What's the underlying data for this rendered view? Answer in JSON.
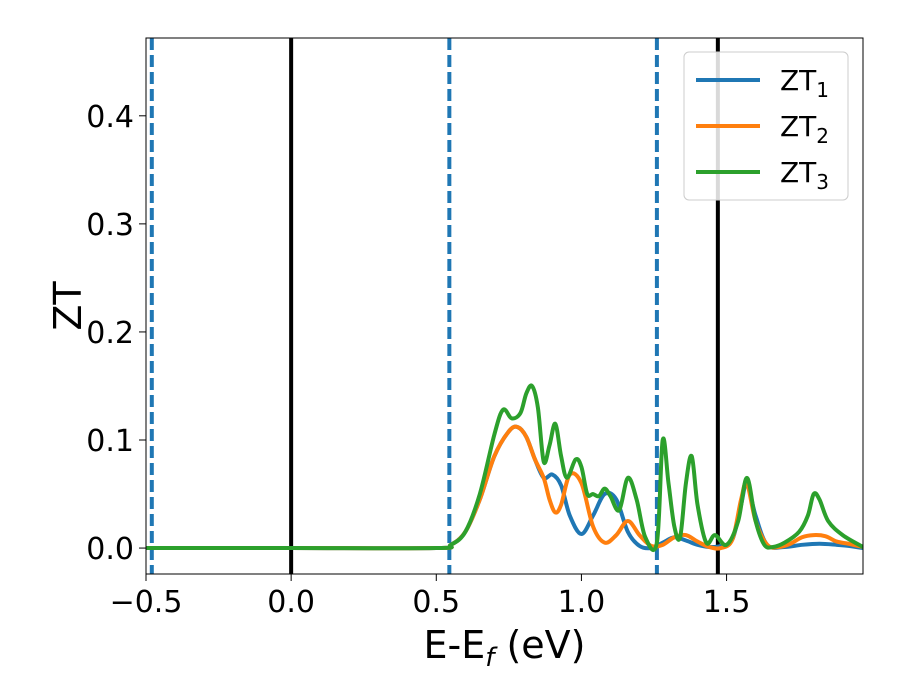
{
  "chart_data": {
    "type": "line",
    "xlabel": "E-E",
    "xlabel_sub": "f",
    "xlabel_unit": " (eV)",
    "ylabel": "ZT",
    "xlim": [
      -0.5,
      1.97
    ],
    "ylim": [
      -0.024,
      0.472
    ],
    "xticks": [
      -0.5,
      0.0,
      0.5,
      1.0,
      1.5
    ],
    "xtick_labels": [
      "−0.5",
      "0.0",
      "0.5",
      "1.0",
      "1.5"
    ],
    "yticks": [
      0.0,
      0.1,
      0.2,
      0.3,
      0.4
    ],
    "ytick_labels": [
      "0.0",
      "0.1",
      "0.2",
      "0.3",
      "0.4"
    ],
    "grid": false,
    "legend_placement": "top-right",
    "vertical_lines": [
      {
        "x": -0.48,
        "style": "dashed",
        "color": "#1f77b4"
      },
      {
        "x": 0.0,
        "style": "solid",
        "color": "#000000"
      },
      {
        "x": 0.545,
        "style": "dashed",
        "color": "#1f77b4"
      },
      {
        "x": 1.26,
        "style": "dashed",
        "color": "#1f77b4"
      },
      {
        "x": 1.47,
        "style": "solid",
        "color": "#000000"
      }
    ],
    "series": [
      {
        "name": "ZT",
        "name_sub": "1",
        "color": "#1f77b4",
        "x": [
          -0.5,
          0.0,
          0.5,
          0.55,
          0.6,
          0.65,
          0.7,
          0.75,
          0.78,
          0.81,
          0.84,
          0.87,
          0.9,
          0.93,
          0.96,
          1.0,
          1.04,
          1.08,
          1.12,
          1.16,
          1.2,
          1.24,
          1.28,
          1.32,
          1.36,
          1.4,
          1.44,
          1.48,
          1.52,
          1.55,
          1.57,
          1.6,
          1.64,
          1.7,
          1.76,
          1.82,
          1.88,
          1.92,
          1.97
        ],
        "y": [
          0.0,
          0.0,
          0.0,
          0.003,
          0.015,
          0.045,
          0.085,
          0.108,
          0.112,
          0.103,
          0.082,
          0.065,
          0.068,
          0.058,
          0.03,
          0.013,
          0.03,
          0.05,
          0.045,
          0.015,
          0.002,
          0.0,
          0.005,
          0.01,
          0.007,
          0.003,
          0.001,
          0.002,
          0.008,
          0.04,
          0.06,
          0.03,
          0.003,
          0.001,
          0.003,
          0.004,
          0.003,
          0.002,
          0.0
        ]
      },
      {
        "name": "ZT",
        "name_sub": "2",
        "color": "#ff7f0e",
        "x": [
          -0.5,
          0.0,
          0.5,
          0.55,
          0.6,
          0.65,
          0.7,
          0.75,
          0.78,
          0.81,
          0.84,
          0.87,
          0.89,
          0.91,
          0.93,
          0.96,
          1.0,
          1.04,
          1.08,
          1.12,
          1.16,
          1.2,
          1.24,
          1.28,
          1.32,
          1.36,
          1.4,
          1.44,
          1.48,
          1.52,
          1.55,
          1.57,
          1.6,
          1.64,
          1.68,
          1.72,
          1.76,
          1.8,
          1.84,
          1.88,
          1.92,
          1.97
        ],
        "y": [
          0.0,
          0.0,
          0.0,
          0.003,
          0.015,
          0.045,
          0.085,
          0.108,
          0.112,
          0.103,
          0.082,
          0.065,
          0.045,
          0.033,
          0.04,
          0.068,
          0.06,
          0.02,
          0.005,
          0.012,
          0.025,
          0.012,
          0.002,
          0.003,
          0.01,
          0.012,
          0.006,
          0.001,
          0.0,
          0.008,
          0.045,
          0.06,
          0.025,
          0.003,
          0.001,
          0.004,
          0.01,
          0.012,
          0.011,
          0.006,
          0.004,
          0.001
        ]
      },
      {
        "name": "ZT",
        "name_sub": "3",
        "color": "#2ca02c",
        "x": [
          -0.5,
          0.0,
          0.5,
          0.55,
          0.6,
          0.65,
          0.7,
          0.73,
          0.76,
          0.79,
          0.81,
          0.83,
          0.85,
          0.87,
          0.89,
          0.91,
          0.93,
          0.95,
          0.98,
          1.0,
          1.02,
          1.04,
          1.06,
          1.08,
          1.1,
          1.13,
          1.16,
          1.19,
          1.22,
          1.26,
          1.28,
          1.3,
          1.32,
          1.34,
          1.36,
          1.38,
          1.4,
          1.43,
          1.46,
          1.5,
          1.54,
          1.57,
          1.6,
          1.63,
          1.66,
          1.7,
          1.75,
          1.78,
          1.8,
          1.82,
          1.85,
          1.9,
          1.97
        ],
        "y": [
          0.0,
          0.0,
          0.0,
          0.003,
          0.015,
          0.05,
          0.105,
          0.128,
          0.12,
          0.125,
          0.143,
          0.15,
          0.13,
          0.08,
          0.095,
          0.115,
          0.085,
          0.065,
          0.082,
          0.075,
          0.05,
          0.05,
          0.048,
          0.055,
          0.048,
          0.035,
          0.065,
          0.045,
          0.01,
          0.005,
          0.1,
          0.06,
          0.02,
          0.01,
          0.06,
          0.085,
          0.04,
          0.005,
          0.012,
          0.003,
          0.025,
          0.065,
          0.025,
          0.003,
          0.001,
          0.005,
          0.015,
          0.03,
          0.05,
          0.045,
          0.025,
          0.012,
          0.001
        ]
      }
    ]
  }
}
